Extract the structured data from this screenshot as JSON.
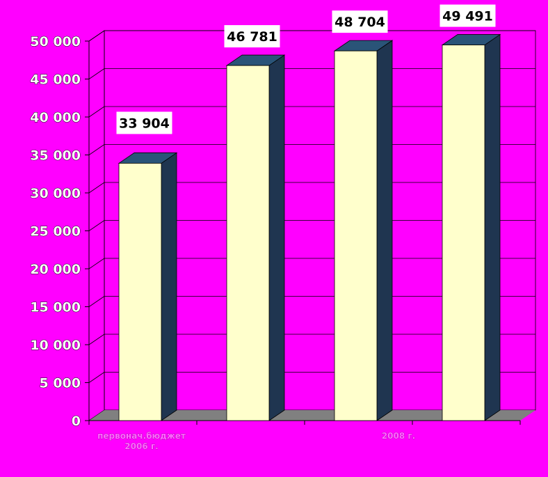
{
  "chart_data": {
    "type": "bar",
    "categories": [
      "первонач.бюджет 2006 г.",
      "",
      "2008 г.",
      ""
    ],
    "values": [
      33904,
      46781,
      48704,
      49491
    ],
    "data_labels": [
      "33 904",
      "46 781",
      "48 704",
      "49 491"
    ],
    "title": "",
    "xlabel": "",
    "ylabel": "",
    "ylim": [
      0,
      50000
    ],
    "yticks": [
      0,
      5000,
      10000,
      15000,
      20000,
      25000,
      30000,
      35000,
      40000,
      45000,
      50000
    ],
    "ytick_labels": [
      "0",
      "5 000",
      "10 000",
      "15 000",
      "20 000",
      "25 000",
      "30 000",
      "35 000",
      "40 000",
      "45 000",
      "50 000"
    ],
    "category_label_lines": [
      [
        "первонач.бюджет",
        "2006 г."
      ],
      [],
      [
        "2008 г."
      ],
      []
    ],
    "grid": true,
    "style": "3d-column",
    "colors": {
      "background": "#ff00ff",
      "bar_face": "#ffffcc",
      "bar_side": "#1f3550",
      "bar_top": "#2a5478",
      "floor": "#808080",
      "grid": "#000000"
    }
  }
}
